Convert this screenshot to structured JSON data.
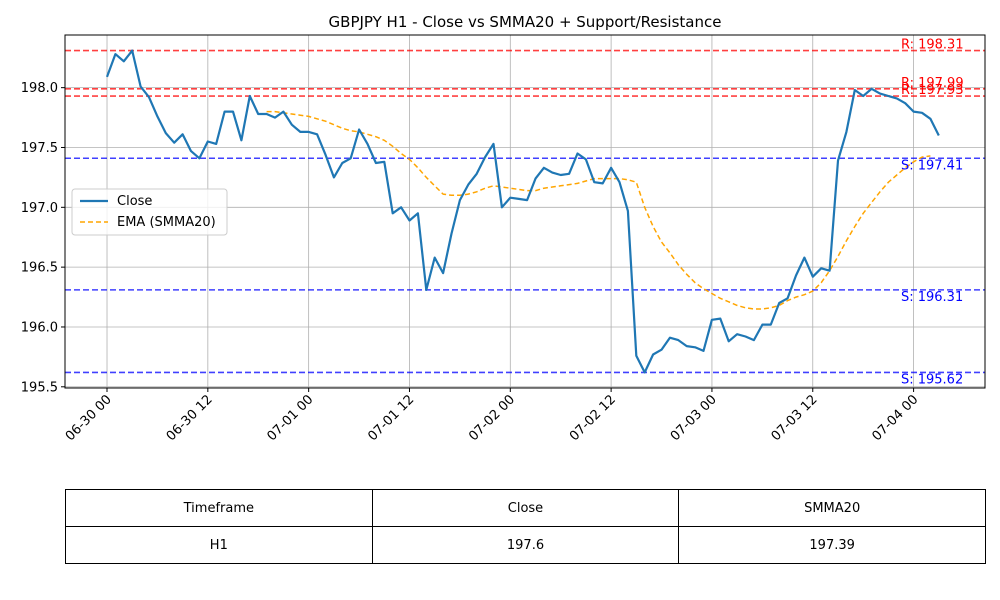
{
  "chart_data": {
    "type": "line",
    "title": "GBPJPY H1 - Close vs SMMA20 + Support/Resistance",
    "ylim": [
      195.49,
      198.44
    ],
    "yticks": [
      195.5,
      196.0,
      196.5,
      197.0,
      197.5,
      198.0
    ],
    "ytick_labels": [
      "195.5",
      "196.0",
      "196.5",
      "197.0",
      "197.5",
      "198.0"
    ],
    "xticks": [
      0,
      12,
      24,
      36,
      48,
      60,
      72,
      84,
      96
    ],
    "xtick_labels": [
      "06-30 00",
      "06-30 12",
      "07-01 00",
      "07-01 12",
      "07-02 00",
      "07-02 12",
      "07-03 00",
      "07-03 12",
      "07-04 00"
    ],
    "xlim": [
      -5,
      104.5
    ],
    "grid": true,
    "legend": {
      "placement": "center-left",
      "entries": [
        "Close",
        "EMA (SMMA20)"
      ]
    },
    "series": [
      {
        "name": "Close",
        "color": "#1f77b4",
        "style": "solid",
        "x": [
          0,
          1,
          2,
          3,
          4,
          5,
          6,
          7,
          8,
          9,
          10,
          11,
          12,
          13,
          14,
          15,
          16,
          17,
          18,
          19,
          20,
          21,
          22,
          23,
          24,
          25,
          26,
          27,
          28,
          29,
          30,
          31,
          32,
          33,
          34,
          35,
          36,
          37,
          38,
          39,
          40,
          41,
          42,
          43,
          44,
          45,
          46,
          47,
          48,
          49,
          50,
          51,
          52,
          53,
          54,
          55,
          56,
          57,
          58,
          59,
          60,
          61,
          62,
          63,
          64,
          65,
          66,
          67,
          68,
          69,
          70,
          71,
          72,
          73,
          74,
          75,
          76,
          77,
          78,
          79,
          80,
          81,
          82,
          83,
          84,
          85,
          86,
          87,
          88,
          89,
          90,
          91,
          92,
          93,
          94,
          95,
          96,
          97,
          98,
          99
        ],
        "values": [
          198.09,
          198.28,
          198.22,
          198.31,
          198.01,
          197.92,
          197.76,
          197.62,
          197.54,
          197.61,
          197.47,
          197.41,
          197.55,
          197.53,
          197.8,
          197.8,
          197.56,
          197.93,
          197.78,
          197.78,
          197.75,
          197.8,
          197.69,
          197.63,
          197.63,
          197.61,
          197.44,
          197.25,
          197.37,
          197.41,
          197.65,
          197.53,
          197.37,
          197.38,
          196.95,
          197.0,
          196.89,
          196.95,
          196.31,
          196.58,
          196.45,
          196.78,
          197.06,
          197.19,
          197.28,
          197.42,
          197.53,
          197.0,
          197.08,
          197.07,
          197.06,
          197.24,
          197.33,
          197.29,
          197.27,
          197.28,
          197.45,
          197.4,
          197.21,
          197.2,
          197.33,
          197.21,
          196.97,
          195.76,
          195.62,
          195.77,
          195.81,
          195.91,
          195.89,
          195.84,
          195.83,
          195.8,
          196.06,
          196.07,
          195.88,
          195.94,
          195.92,
          195.89,
          196.02,
          196.02,
          196.2,
          196.24,
          196.43,
          196.58,
          196.42,
          196.49,
          196.47,
          197.39,
          197.63,
          197.98,
          197.93,
          197.99,
          197.95,
          197.93,
          197.91,
          197.87,
          197.8,
          197.79,
          197.74,
          197.6
        ]
      },
      {
        "name": "EMA (SMMA20)",
        "color": "#ffa500",
        "style": "dashed",
        "x": [
          19,
          20,
          21,
          22,
          23,
          24,
          25,
          26,
          27,
          28,
          29,
          30,
          31,
          32,
          33,
          34,
          35,
          36,
          37,
          38,
          39,
          40,
          41,
          42,
          43,
          44,
          45,
          46,
          47,
          48,
          49,
          50,
          51,
          52,
          53,
          54,
          55,
          56,
          57,
          58,
          59,
          60,
          61,
          62,
          63,
          64,
          65,
          66,
          67,
          68,
          69,
          70,
          71,
          72,
          73,
          74,
          75,
          76,
          77,
          78,
          79,
          80,
          81,
          82,
          83,
          84,
          85,
          86,
          87,
          88,
          89,
          90,
          91,
          92,
          93,
          94,
          95,
          96,
          97,
          98
        ],
        "values": [
          197.8,
          197.8,
          197.79,
          197.78,
          197.77,
          197.76,
          197.74,
          197.72,
          197.69,
          197.66,
          197.64,
          197.63,
          197.61,
          197.59,
          197.56,
          197.51,
          197.45,
          197.4,
          197.33,
          197.25,
          197.18,
          197.11,
          197.1,
          197.1,
          197.11,
          197.13,
          197.16,
          197.18,
          197.17,
          197.16,
          197.15,
          197.14,
          197.14,
          197.16,
          197.17,
          197.18,
          197.19,
          197.2,
          197.22,
          197.24,
          197.24,
          197.24,
          197.24,
          197.23,
          197.21,
          197.0,
          196.84,
          196.71,
          196.62,
          196.52,
          196.44,
          196.37,
          196.32,
          196.28,
          196.24,
          196.21,
          196.18,
          196.16,
          196.15,
          196.15,
          196.16,
          196.18,
          196.22,
          196.25,
          196.27,
          196.3,
          196.37,
          196.47,
          196.59,
          196.72,
          196.84,
          196.95,
          197.04,
          197.13,
          197.21,
          197.27,
          197.33,
          197.38,
          197.42,
          197.43
        ]
      }
    ],
    "levels": [
      {
        "kind": "resistance",
        "value": 198.31,
        "label": "R: 198.31",
        "color": "#ff0000"
      },
      {
        "kind": "resistance",
        "value": 197.99,
        "label": "R: 197.99",
        "color": "#ff0000"
      },
      {
        "kind": "resistance",
        "value": 197.93,
        "label": "R: 197.93",
        "color": "#ff0000"
      },
      {
        "kind": "support",
        "value": 197.41,
        "label": "S: 197.41",
        "color": "#0000ff"
      },
      {
        "kind": "support",
        "value": 196.31,
        "label": "S: 196.31",
        "color": "#0000ff"
      },
      {
        "kind": "support",
        "value": 195.62,
        "label": "S: 195.62",
        "color": "#0000ff"
      }
    ]
  },
  "table": {
    "headers": [
      "Timeframe",
      "Close",
      "SMMA20"
    ],
    "row": [
      "H1",
      "197.6",
      "197.39"
    ]
  }
}
